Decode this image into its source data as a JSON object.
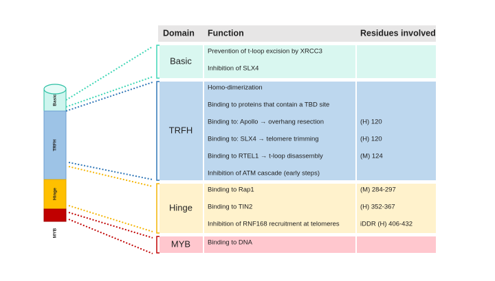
{
  "table": {
    "columns": [
      "Domain",
      "Function",
      "Residues involved"
    ],
    "rows": [
      {
        "domain": "Basic",
        "functions": [
          "Prevention of t-loop excision by XRCC3",
          "Inhibition of SLX4"
        ],
        "residues": [
          null,
          null
        ]
      },
      {
        "domain": "TRFH",
        "functions": [
          "Homo-dimerization",
          "Binding to proteins that contain a TBD site",
          "Binding to: Apollo → overhang resection",
          "Binding to: SLX4 → telomere trimming",
          "Binding to RTEL1 → t-loop disassembly",
          "Inhibition of ATM cascade (early steps)"
        ],
        "residues": [
          null,
          null,
          "(H) 120",
          "(H) 120",
          "(M) 124",
          null
        ]
      },
      {
        "domain": "Hinge",
        "functions": [
          "Binding to Rap1",
          "Binding to  TIN2",
          "Inhibition of RNF168 recruitment at telomeres"
        ],
        "residues": [
          "(M) 284-297",
          "(H) 352-367",
          "iDDR (H) 406-432"
        ]
      },
      {
        "domain": "MYB",
        "functions": [
          "Binding to DNA"
        ],
        "residues": [
          null
        ]
      }
    ]
  },
  "cylinder": {
    "labels": [
      "Basic",
      "TRFH",
      "Hinge",
      "MYB"
    ]
  }
}
